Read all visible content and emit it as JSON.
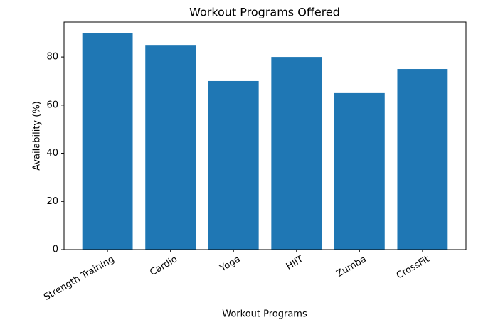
{
  "chart_data": {
    "type": "bar",
    "title": "Workout Programs Offered",
    "x_label": "Workout Programs",
    "y_label": "Availability (%)",
    "categories": [
      "Strength Training",
      "Cardio",
      "Yoga",
      "HIIT",
      "Zumba",
      "CrossFit"
    ],
    "values": [
      90,
      85,
      70,
      80,
      65,
      75
    ],
    "color": "#1f77b4",
    "ylim": [
      0,
      94.5
    ],
    "yticks": [
      0,
      20,
      40,
      60,
      80
    ],
    "grid": false
  }
}
